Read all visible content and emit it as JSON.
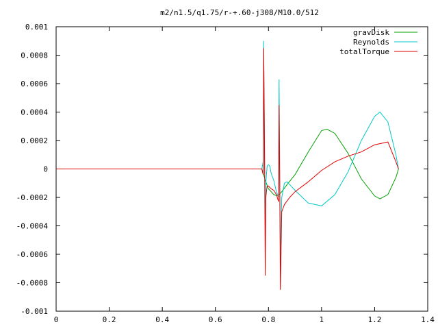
{
  "chart_data": {
    "type": "line",
    "title": "m2/n1.5/q1.75/r-+.60-j308/M10.0/512",
    "xlabel": "",
    "ylabel": "",
    "xlim": [
      0,
      1.4
    ],
    "ylim": [
      -0.001,
      0.001
    ],
    "grid": false,
    "legend_position": "top-right",
    "x_ticks": [
      "0",
      "0.2",
      "0.4",
      "0.6",
      "0.8",
      "1",
      "1.2",
      "1.4"
    ],
    "y_ticks": [
      "0.001",
      "0.0008",
      "0.0006",
      "0.0004",
      "0.0002",
      "0",
      "-0.0002",
      "-0.0004",
      "-0.0006",
      "-0.0008",
      "-0.001"
    ],
    "series": [
      {
        "name": "gravDisk",
        "color": "#00a000",
        "points": [
          [
            0,
            0
          ],
          [
            0.775,
            0
          ],
          [
            0.78,
            -3e-05
          ],
          [
            0.79,
            -9e-05
          ],
          [
            0.8,
            -0.00014
          ],
          [
            0.81,
            -0.00016
          ],
          [
            0.82,
            -0.00018
          ],
          [
            0.835,
            -0.00019
          ],
          [
            0.84,
            -0.00018
          ],
          [
            0.85,
            -0.00016
          ],
          [
            0.87,
            -0.00011
          ],
          [
            0.9,
            -4e-05
          ],
          [
            0.95,
            0.00012
          ],
          [
            1.0,
            0.00027
          ],
          [
            1.02,
            0.00028
          ],
          [
            1.05,
            0.00025
          ],
          [
            1.1,
            0.00011
          ],
          [
            1.15,
            -7e-05
          ],
          [
            1.2,
            -0.00019
          ],
          [
            1.22,
            -0.00021
          ],
          [
            1.25,
            -0.00018
          ],
          [
            1.28,
            -6e-05
          ],
          [
            1.29,
            0.0
          ]
        ]
      },
      {
        "name": "Reynolds",
        "color": "#00c8c8",
        "points": [
          [
            0,
            0
          ],
          [
            0.775,
            0
          ],
          [
            0.78,
            5e-05
          ],
          [
            0.782,
            0.0009
          ],
          [
            0.785,
            0.0002
          ],
          [
            0.788,
            -0.00045
          ],
          [
            0.79,
            -0.0001
          ],
          [
            0.795,
            2e-05
          ],
          [
            0.8,
            3e-05
          ],
          [
            0.805,
            2e-05
          ],
          [
            0.81,
            -3e-05
          ],
          [
            0.82,
            -8e-05
          ],
          [
            0.83,
            -0.00016
          ],
          [
            0.838,
            -0.0002
          ],
          [
            0.84,
            0.00063
          ],
          [
            0.842,
            0.0001
          ],
          [
            0.845,
            -0.00068
          ],
          [
            0.85,
            -0.0002
          ],
          [
            0.86,
            -0.0001
          ],
          [
            0.87,
            -9e-05
          ],
          [
            0.9,
            -0.00015
          ],
          [
            0.95,
            -0.00024
          ],
          [
            1.0,
            -0.00026
          ],
          [
            1.05,
            -0.00018
          ],
          [
            1.1,
            -2e-05
          ],
          [
            1.15,
            0.0002
          ],
          [
            1.2,
            0.00037
          ],
          [
            1.22,
            0.0004
          ],
          [
            1.25,
            0.00033
          ],
          [
            1.28,
            0.0001
          ],
          [
            1.29,
            0.0
          ]
        ]
      },
      {
        "name": "totalTorque",
        "color": "#e00000",
        "points": [
          [
            0,
            0
          ],
          [
            0.775,
            0
          ],
          [
            0.78,
            -4e-05
          ],
          [
            0.782,
            0.00085
          ],
          [
            0.785,
            0.00015
          ],
          [
            0.788,
            -0.00075
          ],
          [
            0.79,
            -0.0002
          ],
          [
            0.795,
            -0.00012
          ],
          [
            0.8,
            -0.00012
          ],
          [
            0.81,
            -0.00014
          ],
          [
            0.82,
            -0.00015
          ],
          [
            0.83,
            -0.00018
          ],
          [
            0.838,
            -0.00023
          ],
          [
            0.84,
            0.00045
          ],
          [
            0.842,
            0.0
          ],
          [
            0.845,
            -0.00085
          ],
          [
            0.85,
            -0.0003
          ],
          [
            0.86,
            -0.00025
          ],
          [
            0.88,
            -0.0002
          ],
          [
            0.9,
            -0.00016
          ],
          [
            0.95,
            -9e-05
          ],
          [
            1.0,
            -1e-05
          ],
          [
            1.05,
            5e-05
          ],
          [
            1.1,
            9e-05
          ],
          [
            1.15,
            0.00012
          ],
          [
            1.2,
            0.00017
          ],
          [
            1.25,
            0.00019
          ],
          [
            1.28,
            5e-05
          ],
          [
            1.29,
            0.0
          ]
        ]
      }
    ]
  }
}
